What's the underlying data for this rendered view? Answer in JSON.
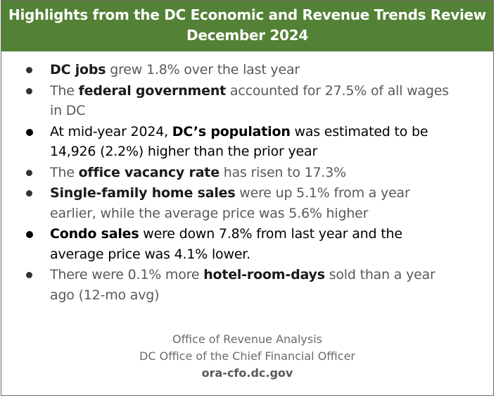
{
  "header": {
    "title_line1": "Highlights from the DC Economic and Revenue Trends Review",
    "title_line2": "December 2024",
    "background_color": "#538135"
  },
  "bullets": [
    {
      "line1": [
        {
          "text": "DC jobs",
          "bold": true
        },
        {
          "text": " grew 1.8% over the last year",
          "bold": false
        }
      ]
    },
    {
      "line1": [
        {
          "text": "The ",
          "bold": false
        },
        {
          "text": "federal government",
          "bold": true
        },
        {
          "text": " accounted for 27.5% of all wages",
          "bold": false
        }
      ],
      "line2": "in DC"
    },
    {
      "line1": [
        {
          "text": "At mid-year 2024, ",
          "bold": false
        },
        {
          "text": "DC’s population",
          "bold": true
        },
        {
          "text": " was estimated to be",
          "bold": false
        }
      ],
      "line2": "14,926 (2.2%) higher than the prior year"
    },
    {
      "line1": [
        {
          "text": "The ",
          "bold": false
        },
        {
          "text": "office vacancy rate",
          "bold": true
        },
        {
          "text": " has risen to 17.3%",
          "bold": false
        }
      ]
    },
    {
      "line1": [
        {
          "text": "Single-family home sales",
          "bold": true
        },
        {
          "text": " were up 5.1% from a year",
          "bold": false
        }
      ],
      "line2": "earlier, while the average price was 5.6% higher"
    },
    {
      "line1": [
        {
          "text": "Condo sales",
          "bold": true
        },
        {
          "text": " were down 7.8% from last year and the",
          "bold": false
        }
      ],
      "line2": "average price was 4.1% lower."
    },
    {
      "line1": [
        {
          "text": "There were 0.1% more ",
          "bold": false
        },
        {
          "text": "hotel-room-days",
          "bold": true
        },
        {
          "text": " sold than a year",
          "bold": false
        }
      ],
      "line2": "ago (12-mo avg)"
    }
  ],
  "footer": {
    "line1": "Office of Revenue Analysis",
    "line2": "DC Office of the Chief Financial Officer",
    "url": "ora-cfo.dc.gov"
  }
}
